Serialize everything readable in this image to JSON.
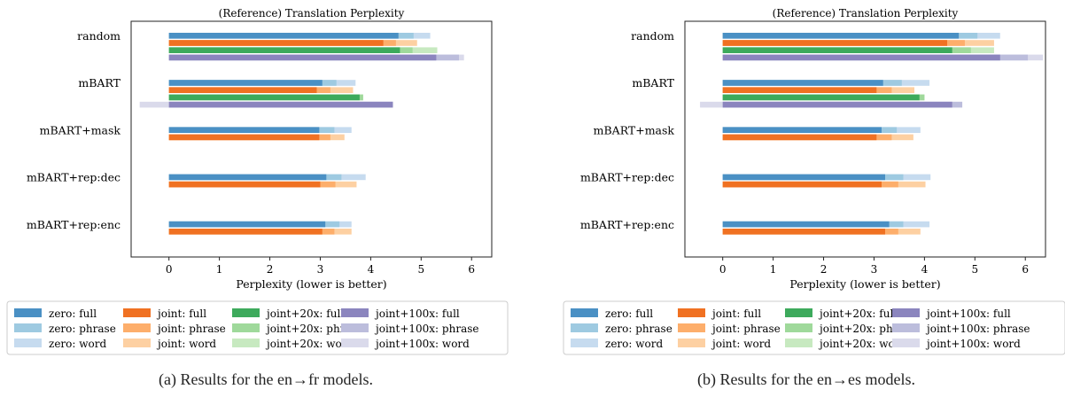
{
  "legend_items": [
    {
      "label": "zero: full",
      "color": "#4a90c4"
    },
    {
      "label": "zero: phrase",
      "color": "#9ecae1"
    },
    {
      "label": "zero: word",
      "color": "#c6dbef"
    },
    {
      "label": "joint: full",
      "color": "#f07122"
    },
    {
      "label": "joint: phrase",
      "color": "#fdae6b"
    },
    {
      "label": "joint: word",
      "color": "#fdd0a2"
    },
    {
      "label": "joint+20x: full",
      "color": "#3daa5c"
    },
    {
      "label": "joint+20x: phrase",
      "color": "#9fd99b"
    },
    {
      "label": "joint+20x: word",
      "color": "#c7e9c0"
    },
    {
      "label": "joint+100x: full",
      "color": "#8b85be"
    },
    {
      "label": "joint+100x: phrase",
      "color": "#bcbddc"
    },
    {
      "label": "joint+100x: word",
      "color": "#dadaeb"
    }
  ],
  "chart_data": [
    {
      "type": "bar",
      "orientation": "horizontal",
      "stacked_overlay": true,
      "title": "(Reference) Translation Perplexity",
      "xlabel": "Perplexity (lower is better)",
      "ylabel": "",
      "xlim": [
        -0.75,
        6.4
      ],
      "xticks": [
        0,
        1,
        2,
        3,
        4,
        5,
        6
      ],
      "caption": "(a) Results for the en→fr models.",
      "categories": [
        "random",
        "mBART",
        "mBART+mask",
        "mBART+rep:dec",
        "mBART+rep:enc"
      ],
      "series": [
        {
          "name": "zero",
          "full": [
            4.55,
            3.04,
            2.98,
            3.12,
            3.1
          ],
          "phrase": [
            4.85,
            3.32,
            3.28,
            3.42,
            3.38
          ],
          "word": [
            5.18,
            3.7,
            3.62,
            3.9,
            3.62
          ]
        },
        {
          "name": "joint",
          "full": [
            4.25,
            2.93,
            2.98,
            3.0,
            3.04
          ],
          "phrase": [
            4.5,
            3.2,
            3.2,
            3.3,
            3.28
          ],
          "word": [
            4.92,
            3.65,
            3.48,
            3.72,
            3.62
          ]
        },
        {
          "name": "joint+20x",
          "full": [
            4.58,
            3.78,
            null,
            null,
            null
          ],
          "phrase": [
            4.83,
            3.85,
            null,
            null,
            null
          ],
          "word": [
            5.32,
            3.85,
            null,
            null,
            null
          ]
        },
        {
          "name": "joint+100x",
          "full": [
            5.3,
            4.44,
            null,
            null,
            null
          ],
          "phrase": [
            5.75,
            4.44,
            null,
            null,
            null
          ],
          "word": [
            5.85,
            -0.58,
            null,
            null,
            null
          ]
        }
      ]
    },
    {
      "type": "bar",
      "orientation": "horizontal",
      "stacked_overlay": true,
      "title": "(Reference) Translation Perplexity",
      "xlabel": "Perplexity (lower is better)",
      "ylabel": "",
      "xlim": [
        -0.75,
        6.4
      ],
      "xticks": [
        0,
        1,
        2,
        3,
        4,
        5,
        6
      ],
      "caption": "(b) Results for the en→es models.",
      "categories": [
        "random",
        "mBART",
        "mBART+mask",
        "mBART+rep:dec",
        "mBART+rep:enc"
      ],
      "series": [
        {
          "name": "zero",
          "full": [
            4.68,
            3.18,
            3.15,
            3.22,
            3.3
          ],
          "phrase": [
            5.05,
            3.55,
            3.45,
            3.58,
            3.58
          ],
          "word": [
            5.5,
            4.1,
            3.92,
            4.12,
            4.1
          ]
        },
        {
          "name": "joint",
          "full": [
            4.45,
            3.05,
            3.05,
            3.15,
            3.22
          ],
          "phrase": [
            4.8,
            3.35,
            3.35,
            3.48,
            3.48
          ],
          "word": [
            5.38,
            3.8,
            3.78,
            4.02,
            3.92
          ]
        },
        {
          "name": "joint+20x",
          "full": [
            4.55,
            3.9,
            null,
            null,
            null
          ],
          "phrase": [
            4.92,
            4.0,
            null,
            null,
            null
          ],
          "word": [
            5.38,
            4.0,
            null,
            null,
            null
          ]
        },
        {
          "name": "joint+100x",
          "full": [
            5.5,
            4.55,
            null,
            null,
            null
          ],
          "phrase": [
            6.05,
            4.75,
            null,
            null,
            null
          ],
          "word": [
            6.35,
            -0.45,
            null,
            null,
            null
          ]
        }
      ]
    }
  ]
}
